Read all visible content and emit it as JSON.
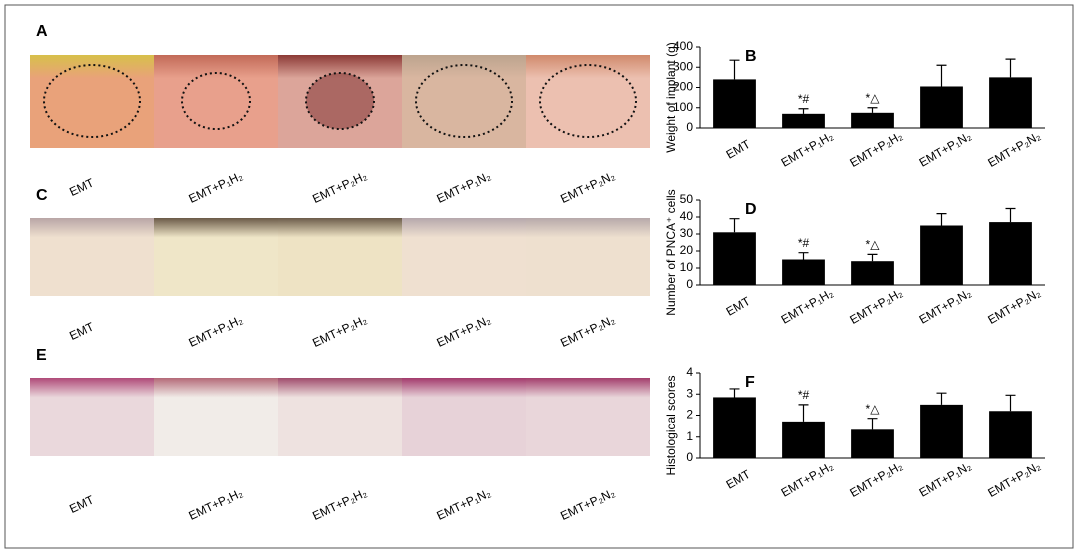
{
  "image_panels": [
    {
      "label": "A",
      "captions": [
        "EMT",
        "EMT+P₁H₂",
        "EMT+P₂H₂",
        "EMT+P₁N₂",
        "EMT+P₂N₂"
      ]
    },
    {
      "label": "C",
      "captions": [
        "EMT",
        "EMT+P₁H₂",
        "EMT+P₂H₂",
        "EMT+P₁N₂",
        "EMT+P₂N₂"
      ]
    },
    {
      "label": "E",
      "captions": [
        "EMT",
        "EMT+P₁H₂",
        "EMT+P₂H₂",
        "EMT+P₁N₂",
        "EMT+P₂N₂"
      ]
    }
  ],
  "chart_data": [
    {
      "type": "bar",
      "panel_label": "B",
      "ylabel": "Weight of implant (g)",
      "categories": [
        "EMT",
        "EMT+P₁H₂",
        "EMT+P₂H₂",
        "EMT+P₁N₂",
        "EMT+P₂N₂"
      ],
      "values": [
        240,
        70,
        75,
        205,
        250
      ],
      "errors": [
        95,
        25,
        25,
        105,
        90
      ],
      "annotations": [
        null,
        "*#",
        "*△",
        null,
        null
      ],
      "color": "#000000",
      "ylim": [
        0,
        400
      ],
      "yticks": [
        0,
        100,
        200,
        300,
        400
      ]
    },
    {
      "type": "bar",
      "panel_label": "D",
      "ylabel": "Number of PNCA⁺ cells",
      "categories": [
        "EMT",
        "EMT+P₁H₂",
        "EMT+P₂H₂",
        "EMT+P₁N₂",
        "EMT+P₂N₂"
      ],
      "values": [
        31,
        15,
        14,
        35,
        37
      ],
      "errors": [
        8,
        4,
        4,
        7,
        8
      ],
      "annotations": [
        null,
        "*#",
        "*△",
        null,
        null
      ],
      "color": "#000000",
      "ylim": [
        0,
        50
      ],
      "yticks": [
        0,
        10,
        20,
        30,
        40,
        50
      ]
    },
    {
      "type": "bar",
      "panel_label": "F",
      "ylabel": "Histological scores",
      "categories": [
        "EMT",
        "EMT+P₁H₂",
        "EMT+P₂H₂",
        "EMT+P₁N₂",
        "EMT+P₂N₂"
      ],
      "values": [
        2.85,
        1.7,
        1.35,
        2.5,
        2.2
      ],
      "errors": [
        0.4,
        0.8,
        0.5,
        0.55,
        0.75
      ],
      "annotations": [
        null,
        "*#",
        "*△",
        null,
        null
      ],
      "color": "#000000",
      "ylim": [
        0,
        4
      ],
      "yticks": [
        0,
        1,
        2,
        3,
        4
      ]
    }
  ]
}
